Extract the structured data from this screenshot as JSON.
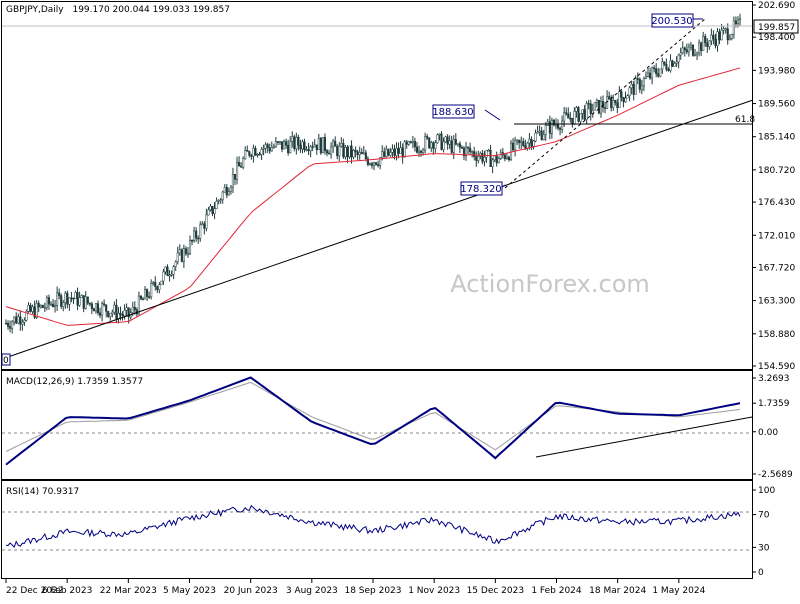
{
  "main_panel": {
    "title": "GBPJPY,Daily",
    "ohlc": "199.170 200.044 199.033 199.857",
    "watermark": "ActionForex.com",
    "price_ticks": [
      "202.690",
      "199.857",
      "198.400",
      "193.980",
      "189.560",
      "185.140",
      "180.720",
      "176.430",
      "172.010",
      "167.720",
      "163.300",
      "158.880",
      "154.590"
    ],
    "current_price": "199.857",
    "current_price_label": "199.857",
    "annotations": [
      {
        "label": "200.530",
        "price": 200.53
      },
      {
        "label": "188.630",
        "price": 188.63
      },
      {
        "label": "178.320",
        "price": 178.32
      },
      {
        "label": "61.8",
        "price": 186.6
      }
    ],
    "bottom_left_marker": "0"
  },
  "macd_panel": {
    "title": "MACD(12,26,9) 1.7359 1.3577",
    "ticks": [
      "3.2693",
      "1.7359",
      "0.00",
      "-2.5689"
    ]
  },
  "rsi_panel": {
    "title": "RSI(14) 70.9317",
    "ticks": [
      "100",
      "70",
      "30",
      "0"
    ]
  },
  "date_axis": [
    "22 Dec 2022",
    "6 Feb 2023",
    "22 Mar 2023",
    "5 May 2023",
    "20 Jun 2023",
    "3 Aug 2023",
    "18 Sep 2023",
    "1 Nov 2023",
    "15 Dec 2023",
    "1 Feb 2024",
    "18 Mar 2024",
    "1 May 2024"
  ],
  "colors": {
    "candle": "#1f3b3b",
    "ma": "#e32636",
    "macd": "#000080",
    "signal": "#9c9c9c",
    "rsi": "#000080",
    "trend": "#000000",
    "level": "#000080"
  },
  "chart_data": [
    {
      "type": "line",
      "title": "GBPJPY,Daily",
      "x": [
        "22 Dec 2022",
        "6 Feb 2023",
        "22 Mar 2023",
        "5 May 2023",
        "20 Jun 2023",
        "3 Aug 2023",
        "18 Sep 2023",
        "1 Nov 2023",
        "15 Dec 2023",
        "1 Feb 2024",
        "18 Mar 2024",
        "1 May 2024",
        "May 2024"
      ],
      "series": [
        {
          "values": [
            160.3,
            163.9,
            161.2,
            170.6,
            183.5,
            184.4,
            182.0,
            184.7,
            182.0,
            187.0,
            190.1,
            196.0,
            199.9
          ]
        },
        {
          "values": [
            162.5,
            160.0,
            160.5,
            165.0,
            175.0,
            181.5,
            182.1,
            182.9,
            182.6,
            184.5,
            188.0,
            192.0,
            194.3
          ]
        }
      ],
      "ylim": [
        154.59,
        202.69
      ],
      "notes": [
        "200.530",
        "188.630",
        "178.320",
        "61.8"
      ]
    },
    {
      "type": "line",
      "title": "MACD(12,26,9) 1.7359 1.3577",
      "x": [
        "22 Dec 2022",
        "6 Feb 2023",
        "22 Mar 2023",
        "5 May 2023",
        "20 Jun 2023",
        "3 Aug 2023",
        "18 Sep 2023",
        "1 Nov 2023",
        "15 Dec 2023",
        "1 Feb 2024",
        "18 Mar 2024",
        "1 May 2024",
        "May 2024"
      ],
      "series": [
        {
          "values": [
            -2.0,
            0.9,
            0.8,
            1.9,
            3.3,
            0.6,
            -0.8,
            1.5,
            -1.6,
            1.8,
            1.1,
            1.0,
            1.74
          ]
        },
        {
          "values": [
            -1.2,
            0.6,
            0.7,
            1.8,
            3.0,
            0.9,
            -0.5,
            1.2,
            -1.1,
            1.6,
            1.2,
            0.9,
            1.36
          ]
        }
      ],
      "ylim": [
        -2.5689,
        3.2693
      ]
    },
    {
      "type": "line",
      "title": "RSI(14) 70.9317",
      "x": [
        "22 Dec 2022",
        "6 Feb 2023",
        "22 Mar 2023",
        "5 May 2023",
        "20 Jun 2023",
        "3 Aug 2023",
        "18 Sep 2023",
        "1 Nov 2023",
        "15 Dec 2023",
        "1 Feb 2024",
        "18 Mar 2024",
        "1 May 2024",
        "May 2024"
      ],
      "series": [
        {
          "values": [
            31,
            49,
            46,
            66,
            79,
            61,
            50,
            64,
            37,
            68,
            61,
            62,
            70.9
          ]
        }
      ],
      "ylim": [
        0,
        100
      ]
    }
  ]
}
